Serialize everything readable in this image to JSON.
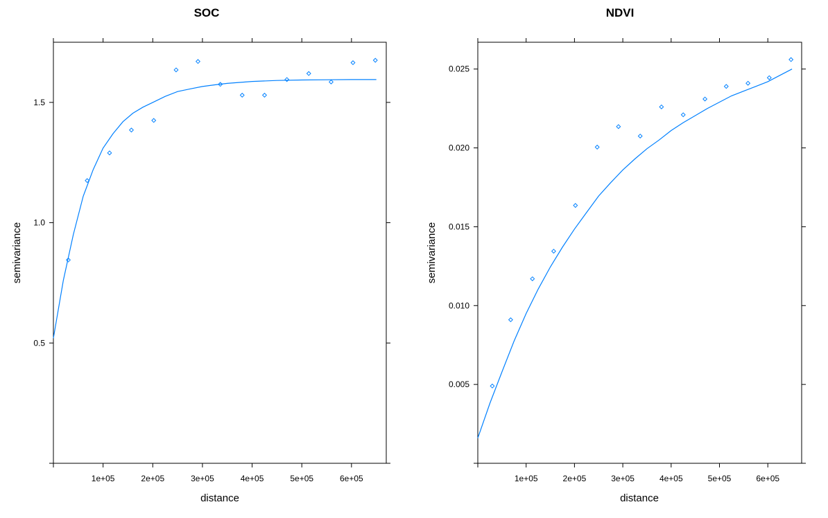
{
  "chart_data": [
    {
      "type": "scatter",
      "title": "SOC",
      "xlabel": "distance",
      "ylabel": "semivariance",
      "xlim": [
        0,
        670000
      ],
      "ylim": [
        0,
        1.75
      ],
      "xticks": [
        100000,
        200000,
        300000,
        400000,
        500000,
        600000
      ],
      "xtick_labels": [
        "1e+05",
        "2e+05",
        "3e+05",
        "4e+05",
        "5e+05",
        "6e+05"
      ],
      "yticks": [
        0.5,
        1.0,
        1.5
      ],
      "ytick_labels": [
        "0.5",
        "1.0",
        "1.5"
      ],
      "grid": false,
      "color": "#0080ff",
      "points": {
        "x": [
          30000,
          68000,
          113000,
          157000,
          202000,
          247000,
          291000,
          336000,
          380000,
          425000,
          470000,
          514000,
          559000,
          603000,
          648000
        ],
        "y": [
          0.845,
          1.175,
          1.29,
          1.385,
          1.425,
          1.635,
          1.67,
          1.575,
          1.53,
          1.53,
          1.595,
          1.62,
          1.585,
          1.665,
          1.675
        ]
      },
      "fitted_curve": {
        "x": [
          0,
          20000,
          40000,
          60000,
          80000,
          100000,
          120000,
          140000,
          160000,
          180000,
          200000,
          225000,
          250000,
          275000,
          300000,
          325000,
          350000,
          375000,
          400000,
          450000,
          500000,
          550000,
          600000,
          650000
        ],
        "y": [
          0.52,
          0.76,
          0.95,
          1.11,
          1.22,
          1.31,
          1.37,
          1.42,
          1.455,
          1.48,
          1.5,
          1.525,
          1.545,
          1.556,
          1.566,
          1.573,
          1.579,
          1.583,
          1.587,
          1.591,
          1.593,
          1.594,
          1.595,
          1.595
        ]
      }
    },
    {
      "type": "scatter",
      "title": "NDVI",
      "xlabel": "distance",
      "ylabel": "semivariance",
      "xlim": [
        0,
        670000
      ],
      "ylim": [
        0,
        0.0267
      ],
      "xticks": [
        100000,
        200000,
        300000,
        400000,
        500000,
        600000
      ],
      "xtick_labels": [
        "1e+05",
        "2e+05",
        "3e+05",
        "4e+05",
        "5e+05",
        "6e+05"
      ],
      "yticks": [
        0.005,
        0.01,
        0.015,
        0.02,
        0.025
      ],
      "ytick_labels": [
        "0.005",
        "0.010",
        "0.015",
        "0.020",
        "0.025"
      ],
      "grid": false,
      "color": "#0080ff",
      "points": {
        "x": [
          30000,
          68000,
          113000,
          157000,
          202000,
          247000,
          291000,
          336000,
          380000,
          425000,
          470000,
          514000,
          559000,
          603000,
          648000
        ],
        "y": [
          0.0049,
          0.0091,
          0.0117,
          0.01345,
          0.01635,
          0.02005,
          0.02135,
          0.02075,
          0.0226,
          0.0221,
          0.0231,
          0.0239,
          0.0241,
          0.02445,
          0.0256
        ]
      },
      "fitted_curve": {
        "x": [
          0,
          25000,
          50000,
          75000,
          100000,
          125000,
          150000,
          175000,
          200000,
          225000,
          250000,
          275000,
          300000,
          325000,
          350000,
          375000,
          400000,
          425000,
          450000,
          475000,
          500000,
          525000,
          550000,
          575000,
          600000,
          625000,
          650000
        ],
        "y": [
          0.0016,
          0.0038,
          0.0058,
          0.00775,
          0.0095,
          0.01105,
          0.01245,
          0.0137,
          0.01485,
          0.0159,
          0.01695,
          0.0178,
          0.0186,
          0.0193,
          0.01995,
          0.0205,
          0.0211,
          0.0216,
          0.02205,
          0.0225,
          0.0229,
          0.0233,
          0.0236,
          0.0239,
          0.0242,
          0.0246,
          0.025
        ]
      }
    }
  ]
}
